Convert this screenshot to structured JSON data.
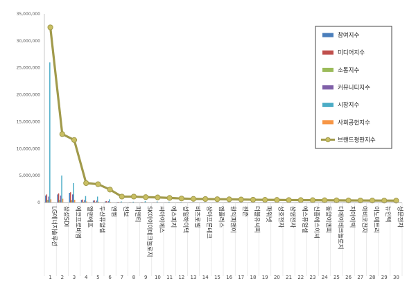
{
  "chart_data": {
    "type": "bar",
    "categories": [
      "LG에너지솔루션",
      "삼성SDI",
      "에코프로비엠",
      "엘앤에프",
      "두산퓨얼셀",
      "엔켐",
      "천보",
      "피엔티",
      "SK아이이테크놀로지",
      "씨아이에스",
      "에스피지",
      "성일하이텍",
      "비츠로셀",
      "상아프론테크",
      "엠플러스",
      "원익피앤이",
      "원준",
      "더블유씨피",
      "파워넷",
      "성호전자",
      "삼영전자",
      "에스퓨얼셀",
      "신흥에스이씨",
      "동양이엔피",
      "디에이테크놀로지",
      "지아이텍",
      "아비코전자",
      "이노메트리",
      "뉴인텍",
      "성문전자"
    ],
    "ranks": [
      "1",
      "2",
      "3",
      "4",
      "5",
      "6",
      "7",
      "8",
      "9",
      "10",
      "11",
      "12",
      "13",
      "14",
      "15",
      "16",
      "17",
      "18",
      "19",
      "20",
      "21",
      "22",
      "23",
      "24",
      "25",
      "26",
      "27",
      "28",
      "29",
      "30"
    ],
    "series": [
      {
        "name": "참여지수",
        "color": "#4a7ebb",
        "values": [
          1300000,
          1500000,
          1800000,
          500000,
          350000,
          200000,
          100000,
          60000,
          80000,
          50000,
          40000,
          30000,
          25000,
          25000,
          20000,
          20000,
          18000,
          15000,
          15000,
          15000,
          12000,
          12000,
          10000,
          10000,
          10000,
          8000,
          8000,
          8000,
          6000,
          6000
        ]
      },
      {
        "name": "미디어지수",
        "color": "#c0504d",
        "values": [
          1500000,
          1700000,
          1900000,
          550000,
          400000,
          250000,
          120000,
          80000,
          90000,
          60000,
          50000,
          40000,
          30000,
          30000,
          25000,
          25000,
          20000,
          18000,
          18000,
          18000,
          15000,
          15000,
          12000,
          12000,
          12000,
          10000,
          10000,
          10000,
          8000,
          8000
        ]
      },
      {
        "name": "소통지수",
        "color": "#9bbb59",
        "values": [
          500000,
          500000,
          450000,
          150000,
          100000,
          80000,
          40000,
          30000,
          30000,
          20000,
          20000,
          15000,
          12000,
          12000,
          10000,
          10000,
          8000,
          8000,
          8000,
          8000,
          6000,
          6000,
          6000,
          5000,
          5000,
          5000,
          5000,
          4000,
          4000,
          4000
        ]
      },
      {
        "name": "커뮤니티지수",
        "color": "#7f5fa8",
        "values": [
          1100000,
          1300000,
          1500000,
          450000,
          350000,
          250000,
          80000,
          60000,
          70000,
          50000,
          40000,
          30000,
          25000,
          25000,
          20000,
          20000,
          15000,
          15000,
          15000,
          12000,
          12000,
          10000,
          10000,
          10000,
          8000,
          8000,
          8000,
          6000,
          6000,
          6000
        ]
      },
      {
        "name": "시장지수",
        "color": "#4bacc6",
        "values": [
          26000000,
          5000000,
          3600000,
          1200000,
          1100000,
          600000,
          200000,
          150000,
          250000,
          200000,
          150000,
          100000,
          80000,
          90000,
          70000,
          80000,
          60000,
          50000,
          50000,
          40000,
          40000,
          35000,
          35000,
          30000,
          30000,
          25000,
          25000,
          20000,
          20000,
          20000
        ]
      },
      {
        "name": "사회공헌지수",
        "color": "#f79646",
        "values": [
          600000,
          700000,
          500000,
          200000,
          150000,
          100000,
          40000,
          30000,
          40000,
          30000,
          25000,
          20000,
          15000,
          15000,
          12000,
          12000,
          10000,
          10000,
          10000,
          8000,
          8000,
          8000,
          6000,
          6000,
          6000,
          5000,
          5000,
          5000,
          4000,
          4000
        ]
      }
    ],
    "line_series": {
      "name": "브랜드평판지수",
      "color": "#a19a4b",
      "marker_fill": "#c9bf63",
      "values": [
        32500000,
        12700000,
        11600000,
        3600000,
        3400000,
        2400000,
        1100000,
        1100000,
        1000000,
        950000,
        850000,
        750000,
        680000,
        650000,
        620000,
        600000,
        560000,
        520000,
        500000,
        480000,
        460000,
        450000,
        430000,
        420000,
        400000,
        390000,
        380000,
        370000,
        360000,
        350000
      ]
    },
    "y_ticks": [
      "0",
      "5,000,000",
      "10,000,000",
      "15,000,000",
      "20,000,000",
      "25,000,000",
      "30,000,000",
      "35,000,000"
    ],
    "ylim": [
      0,
      35000000
    ],
    "grid": false,
    "legend": "top-right"
  }
}
